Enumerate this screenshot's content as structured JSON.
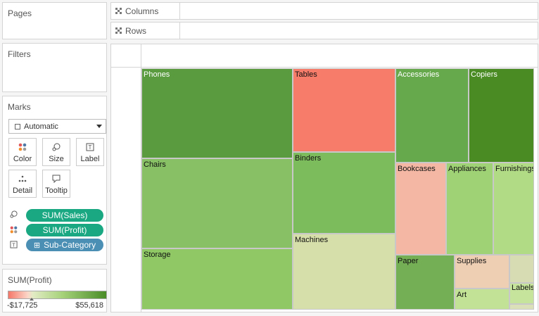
{
  "panels": {
    "pages_title": "Pages",
    "filters_title": "Filters",
    "marks_title": "Marks"
  },
  "shelves": {
    "columns_label": "Columns",
    "rows_label": "Rows"
  },
  "marks": {
    "type_value": "Automatic",
    "buttons": {
      "color": "Color",
      "size": "Size",
      "label": "Label",
      "detail": "Detail",
      "tooltip": "Tooltip"
    },
    "pills": {
      "size": "SUM(Sales)",
      "color": "SUM(Profit)",
      "label": "Sub-Category"
    }
  },
  "legend": {
    "title": "SUM(Profit)",
    "min": "-$17,725",
    "max": "$55,618"
  },
  "treemap": {
    "cells": [
      {
        "name": "Phones",
        "color": "#5a9b40"
      },
      {
        "name": "Chairs",
        "color": "#88c065"
      },
      {
        "name": "Storage",
        "color": "#8fc865"
      },
      {
        "name": "Tables",
        "color": "#f77c6a"
      },
      {
        "name": "Binders",
        "color": "#7dbc5c"
      },
      {
        "name": "Machines",
        "color": "#d6dfa9"
      },
      {
        "name": "Accessories",
        "color": "#66a84c"
      },
      {
        "name": "Copiers",
        "color": "#4a8b24"
      },
      {
        "name": "Bookcases",
        "color": "#f4b7a3"
      },
      {
        "name": "Appliances",
        "color": "#9fd175"
      },
      {
        "name": "Furnishings",
        "color": "#b1dc85"
      },
      {
        "name": "Paper",
        "color": "#74ae55"
      },
      {
        "name": "Supplies",
        "color": "#efcfb4"
      },
      {
        "name": "Art",
        "color": "#c2e396"
      },
      {
        "name": "Labels",
        "color": "#c6e49b"
      },
      {
        "name": "",
        "color": "#d7dcb2"
      },
      {
        "name": "",
        "color": "#dbe0b8"
      }
    ]
  }
}
